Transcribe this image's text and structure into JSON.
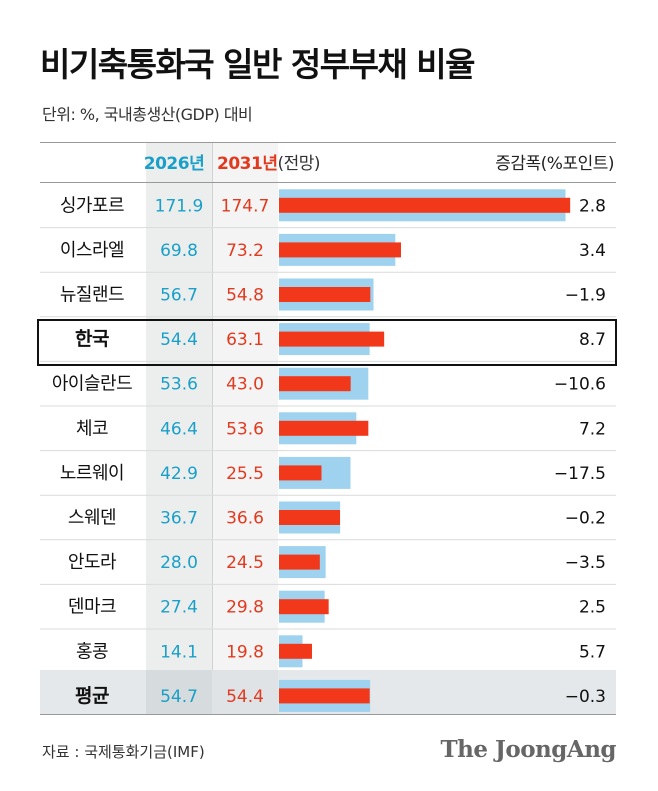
{
  "title": "비기축통화국 일반 정부부채 비율",
  "subtitle": "단위: %, 국내총생산(GDP) 대비",
  "headers": {
    "y2026": "2026년",
    "y2031": "2031년",
    "y2031_note": "(전망)",
    "change": "증감폭(%포인트)"
  },
  "colors": {
    "bar_2026": "#9fd2ee",
    "bar_2031": "#f2381a",
    "value_2026": "#1aa0c8",
    "value_2031": "#e23a1e"
  },
  "highlight_country": "한국",
  "average_label": "평균",
  "chart_data": {
    "type": "bar",
    "categories": [
      "싱가포르",
      "이스라엘",
      "뉴질랜드",
      "한국",
      "아이슬란드",
      "체코",
      "노르웨이",
      "스웨덴",
      "안도라",
      "덴마크",
      "홍콩",
      "평균"
    ],
    "series": [
      {
        "name": "2026년",
        "values": [
          171.9,
          69.8,
          56.7,
          54.4,
          53.6,
          46.4,
          42.9,
          36.7,
          28.0,
          27.4,
          14.1,
          54.7
        ]
      },
      {
        "name": "2031년",
        "values": [
          174.7,
          73.2,
          54.8,
          63.1,
          43.0,
          53.6,
          25.5,
          36.6,
          24.5,
          29.8,
          19.8,
          54.4
        ]
      }
    ],
    "value_labels_2026": [
      "171.9",
      "69.8",
      "56.7",
      "54.4",
      "53.6",
      "46.4",
      "42.9",
      "36.7",
      "28.0",
      "27.4",
      "14.1",
      "54.7"
    ],
    "value_labels_2031": [
      "174.7",
      "73.2",
      "54.8",
      "63.1",
      "43.0",
      "53.6",
      "25.5",
      "36.6",
      "24.5",
      "29.8",
      "19.8",
      "54.4"
    ],
    "change_labels": [
      "2.8",
      "3.4",
      "−1.9",
      "8.7",
      "−10.6",
      "7.2",
      "−17.5",
      "−0.2",
      "−3.5",
      "2.5",
      "5.7",
      "−0.3"
    ],
    "xlim": [
      0,
      180
    ],
    "grid": false,
    "legend": "header"
  },
  "source": "자료 : 국제통화기금(IMF)",
  "logo_text": "The JoongAng"
}
